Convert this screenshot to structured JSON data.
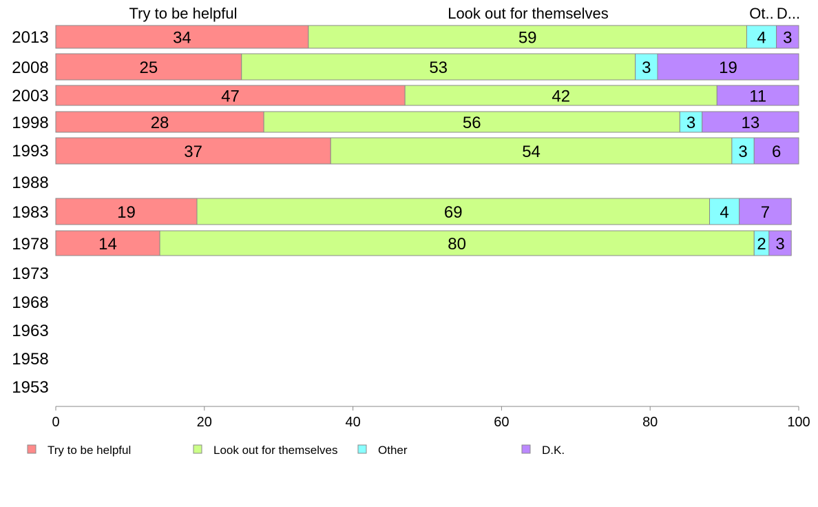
{
  "chart_data": {
    "type": "bar",
    "orientation": "horizontal",
    "stacked": true,
    "categories": [
      "2013",
      "2008",
      "2003",
      "1998",
      "1993",
      "1988",
      "1983",
      "1978",
      "1973",
      "1968",
      "1963",
      "1958",
      "1953"
    ],
    "series": [
      {
        "name": "Try to be helpful",
        "color": "#ff8a8a",
        "values": [
          34,
          25,
          47,
          28,
          37,
          null,
          19,
          14,
          null,
          null,
          null,
          null,
          null
        ]
      },
      {
        "name": "Look out for themselves",
        "color": "#ccff88",
        "values": [
          59,
          53,
          42,
          56,
          54,
          null,
          69,
          80,
          null,
          null,
          null,
          null,
          null
        ]
      },
      {
        "name": "Other",
        "color": "#88ffff",
        "values": [
          4,
          3,
          0,
          3,
          3,
          null,
          4,
          2,
          null,
          null,
          null,
          null,
          null
        ]
      },
      {
        "name": "D.K.",
        "color": "#bb88ff",
        "values": [
          3,
          19,
          11,
          13,
          6,
          null,
          7,
          3,
          null,
          null,
          null,
          null,
          null
        ]
      }
    ],
    "column_headers": [
      "Try to be helpful",
      "Look out for themselves",
      "Ot..",
      "D..."
    ],
    "xlim": [
      0,
      100
    ],
    "xticks": [
      "0",
      "20",
      "40",
      "60",
      "80",
      "100"
    ],
    "grid": false,
    "legend_position": "bottom"
  }
}
